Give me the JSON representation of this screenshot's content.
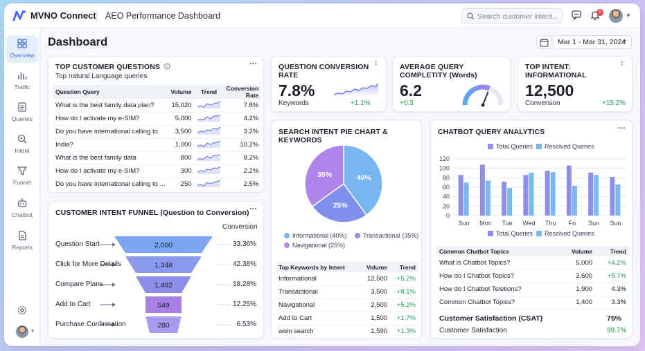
{
  "app": {
    "brand": "MVNO Connect",
    "title": "AEO Performance Dashboard"
  },
  "search": {
    "placeholder": "Search customer intent..."
  },
  "notifications": {
    "count": "1"
  },
  "sidebar": {
    "items": [
      {
        "label": "Overview",
        "icon": "grid-icon"
      },
      {
        "label": "Traffic",
        "icon": "bar-chart-icon"
      },
      {
        "label": "Queries",
        "icon": "document-icon"
      },
      {
        "label": "Intent",
        "icon": "search-icon"
      },
      {
        "label": "Funnel",
        "icon": "funnel-icon"
      },
      {
        "label": "Chatbot",
        "icon": "bot-icon"
      },
      {
        "label": "Reports",
        "icon": "report-icon"
      }
    ]
  },
  "header": {
    "title": "Dashboard",
    "date_range": "Mar 1 - Mar 31, 2024"
  },
  "top_questions": {
    "title": "TOP CUSTOMER QUESTIONS",
    "subtitle": "Top natural Language queries",
    "columns": [
      "Question Query",
      "Volume",
      "Trend",
      "Conversion Rate"
    ],
    "rows": [
      {
        "q": "What is the best family data plan?",
        "volume": "15,020",
        "rate": "7.8%"
      },
      {
        "q": "How do I activate my e-SIM?",
        "volume": "5,000",
        "rate": "4.2%"
      },
      {
        "q": "Do you have international calling to",
        "volume": "3,500",
        "rate": "3.2%"
      },
      {
        "q": "India?",
        "volume": "1,000",
        "rate": "10.2%"
      },
      {
        "q": "What is the best family data",
        "volume": "800",
        "rate": "8.2%"
      },
      {
        "q": "How do I activate my e-SIM?",
        "volume": "300",
        "rate": "2.2%"
      },
      {
        "q": "Do you have international calling to ...",
        "volume": "250",
        "rate": "2.5%"
      }
    ]
  },
  "kpis": [
    {
      "title": "QUESTION CONVERSION RATE",
      "value": "7.8%",
      "sub": "Keywords",
      "delta": "+1.1%"
    },
    {
      "title": "AVERAGE QUERY COMPLETITY (Words)",
      "value": "6.2",
      "sub": "",
      "delta": "+0.3",
      "gauge_fraction": 0.62
    },
    {
      "title": "TOP INTENT: INFORMATIONAL",
      "value": "12,500",
      "sub": "Conversion",
      "delta": "+15.2%"
    }
  ],
  "funnel": {
    "title": "CUSTOMER INTENT FUNNEL (Question to Conversion)",
    "conversion_header": "Conversion",
    "stages": [
      {
        "label": "Question Start",
        "value": "2,000",
        "pct": "33.36%",
        "color": "#7aa6f3"
      },
      {
        "label": "Click for More Details",
        "value": "1,348",
        "pct": "42.38%",
        "color": "#8b98ef"
      },
      {
        "label": "Compare Plans",
        "value": "1,492",
        "pct": "18.28%",
        "color": "#8e8ce9"
      },
      {
        "label": "Add to Cart",
        "value": "549",
        "pct": "12.25%",
        "color": "#a87fe6"
      },
      {
        "label": "Purchase Confirmation",
        "value": "280",
        "pct": "6.53%",
        "color": "#a99aee"
      }
    ]
  },
  "search_intent": {
    "title": "SEARCH INTENT PIE CHART & KEYWORDS",
    "legend": [
      {
        "label": "Informational (40%)",
        "color": "#77b6f2"
      },
      {
        "label": "Transactional (35%)",
        "color": "#8f8fe8"
      },
      {
        "label": "Navigational (25%)",
        "color": "#b98aea"
      }
    ],
    "columns": [
      "Top Keywords by Intent",
      "Volume",
      "Trend"
    ],
    "rows": [
      {
        "k": "Informational",
        "v": "12,500",
        "t": "+5.2%"
      },
      {
        "k": "Transactional",
        "v": "3,500",
        "t": "+8.1%"
      },
      {
        "k": "Navigational",
        "v": "2,500",
        "t": "+5.2%"
      },
      {
        "k": "Add to Cart",
        "v": "1,500",
        "t": "+1.7%"
      },
      {
        "k": "woin search",
        "v": "1,590",
        "t": "+1.3%"
      }
    ]
  },
  "chart_data": [
    {
      "type": "pie",
      "labels": [
        "Informational",
        "Navigational",
        "Transactional"
      ],
      "values": [
        40,
        25,
        35
      ],
      "value_labels": [
        "40%",
        "25%",
        "35%"
      ],
      "colors": [
        "#77b6f2",
        "#7f8ff0",
        "#ae85ea"
      ]
    },
    {
      "type": "bar",
      "categories": [
        "Sun",
        "Mon",
        "Tue",
        "Wed",
        "Thu",
        "Fri",
        "Sun",
        "Sun"
      ],
      "series": [
        {
          "name": "Total Queries",
          "values": [
            86,
            108,
            72,
            86,
            95,
            106,
            91,
            82
          ],
          "color": "#8d8fea"
        },
        {
          "name": "Resolved Queries",
          "values": [
            70,
            74,
            58,
            91,
            92,
            63,
            86,
            66
          ],
          "color": "#79b9ef"
        }
      ],
      "yticks": [
        "120",
        "100",
        "80",
        "60",
        "40",
        "20",
        "0"
      ],
      "ylim": [
        0,
        120
      ],
      "grid": true,
      "legend": "top"
    }
  ],
  "chatbot": {
    "title": "CHATBOT QUERY ANALYTICS",
    "columns": [
      "Common Chatbot Topics",
      "Volume",
      "Trend"
    ],
    "rows": [
      {
        "k": "What is Chatbot Topics?",
        "v": "5,000",
        "t": "+4.2%"
      },
      {
        "k": "How do I Chatbot Topics?",
        "v": "2,600",
        "t": "+5.7%"
      },
      {
        "k": "How do I Chatbot Teletions?",
        "v": "1,900",
        "t": "4.3%"
      },
      {
        "k": "Common Chatbot Topics?",
        "v": "1,400",
        "t": "3.3%"
      }
    ],
    "csat_label": "Customer Satisfaction (CSAT)",
    "csat_value": "75%",
    "csat_sub": "Customer Satisfaction",
    "csat_sub_value": "99.7%"
  },
  "colors": {
    "accent": "#3b6fd6",
    "positive": "#1f9d55"
  }
}
